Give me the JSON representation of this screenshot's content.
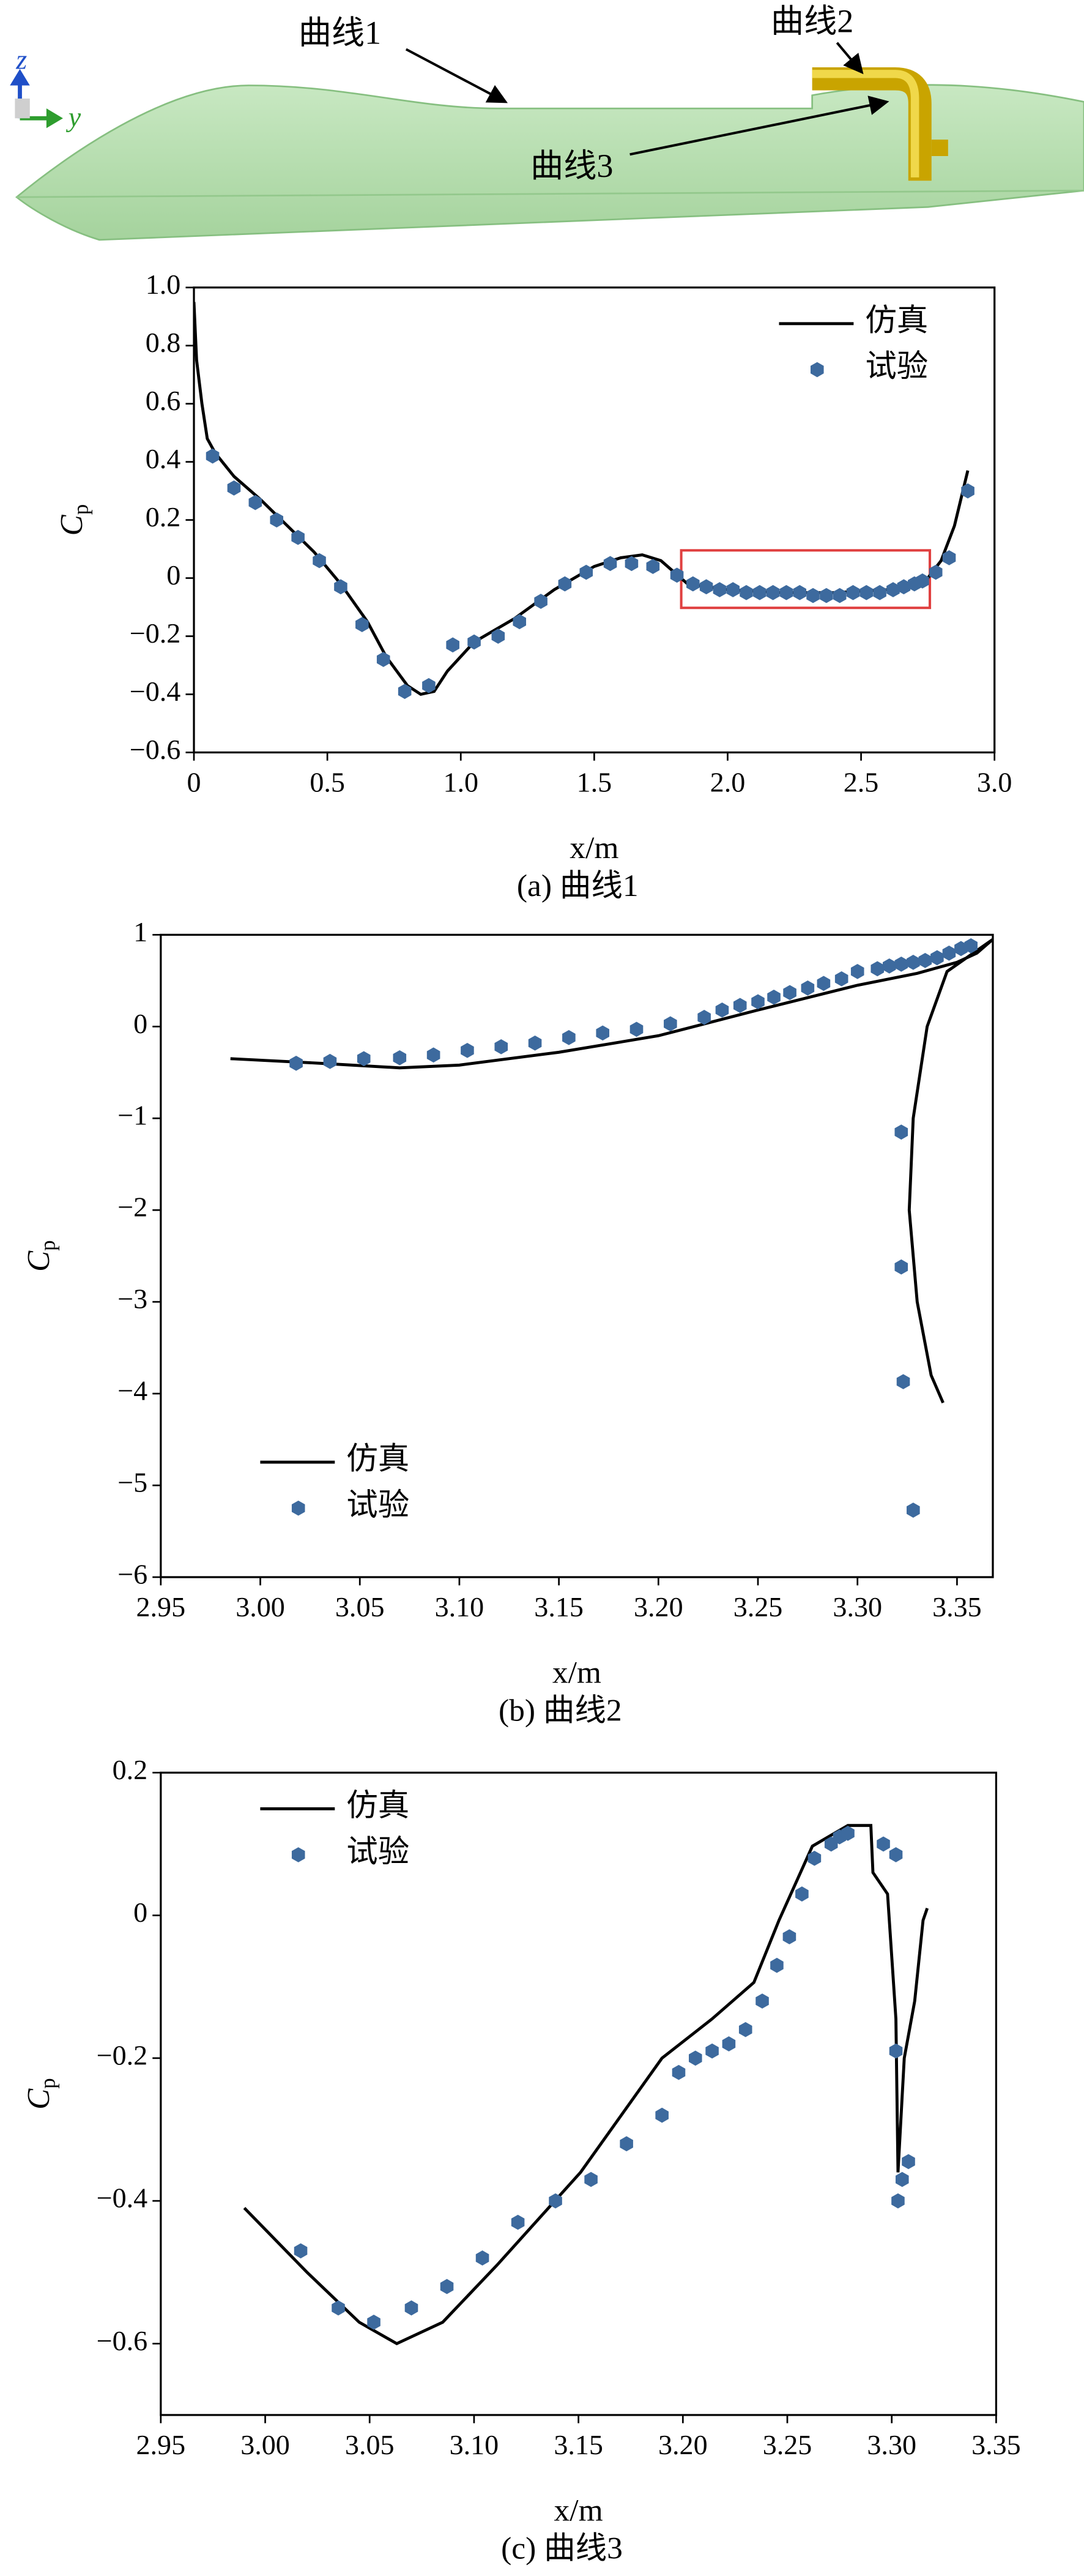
{
  "illustration": {
    "curve1": "曲线1",
    "curve2": "曲线2",
    "curve3": "曲线3",
    "axis_z": "z",
    "axis_y": "y"
  },
  "chart_data": [
    {
      "type": "line",
      "caption": "(a) 曲线1",
      "xlabel": "x/m",
      "ylabel": "C",
      "ylabel_subscript": "p",
      "legend": "upper right",
      "xlim": [
        0,
        3
      ],
      "ylim": [
        -0.6,
        1.0
      ],
      "xticks": [
        0,
        0.5,
        {
          "value": 1,
          "label": "1.0"
        },
        1.5,
        {
          "value": 2,
          "label": "2.0"
        },
        2.5,
        {
          "value": 3,
          "label": "3.0"
        }
      ],
      "yticks": [
        {
          "value": 1,
          "label": "1.0"
        },
        0.8,
        0.6,
        0.4,
        0.2,
        0,
        {
          "value": -0.2,
          "label": "−0.2"
        },
        {
          "value": -0.4,
          "label": "−0.4"
        },
        {
          "value": -0.6,
          "label": "−0.6"
        }
      ],
      "series": [
        {
          "name": "仿真",
          "kind": "line",
          "color": "#000000",
          "x": [
            0,
            0.01,
            0.03,
            0.05,
            0.08,
            0.15,
            0.25,
            0.35,
            0.45,
            0.55,
            0.65,
            0.72,
            0.8,
            0.85,
            0.9,
            0.95,
            1.05,
            1.2,
            1.35,
            1.5,
            1.6,
            1.68,
            1.75,
            1.85,
            2.0,
            2.2,
            2.4,
            2.6,
            2.7,
            2.75,
            2.8,
            2.85,
            2.9
          ],
          "values": [
            0.95,
            0.75,
            0.6,
            0.48,
            0.43,
            0.35,
            0.27,
            0.18,
            0.09,
            -0.02,
            -0.15,
            -0.27,
            -0.37,
            -0.4,
            -0.39,
            -0.32,
            -0.22,
            -0.14,
            -0.04,
            0.04,
            0.07,
            0.08,
            0.06,
            -0.02,
            -0.04,
            -0.05,
            -0.05,
            -0.04,
            -0.02,
            0.0,
            0.06,
            0.18,
            0.37
          ]
        },
        {
          "name": "试验",
          "kind": "scatter",
          "color": "#3d6a9e",
          "x": [
            0.07,
            0.15,
            0.23,
            0.31,
            0.39,
            0.47,
            0.55,
            0.63,
            0.71,
            0.79,
            0.88,
            0.97,
            1.05,
            1.14,
            1.22,
            1.3,
            1.39,
            1.47,
            1.56,
            1.64,
            1.72,
            1.81,
            1.87,
            1.92,
            1.97,
            2.02,
            2.07,
            2.12,
            2.17,
            2.22,
            2.27,
            2.32,
            2.37,
            2.42,
            2.47,
            2.52,
            2.57,
            2.62,
            2.66,
            2.7,
            2.73,
            2.78,
            2.83,
            2.9
          ],
          "values": [
            0.42,
            0.31,
            0.26,
            0.2,
            0.14,
            0.06,
            -0.03,
            -0.16,
            -0.28,
            -0.39,
            -0.37,
            -0.23,
            -0.22,
            -0.2,
            -0.15,
            -0.08,
            -0.02,
            0.02,
            0.05,
            0.05,
            0.04,
            0.01,
            -0.02,
            -0.03,
            -0.04,
            -0.04,
            -0.05,
            -0.05,
            -0.05,
            -0.05,
            -0.05,
            -0.06,
            -0.06,
            -0.06,
            -0.05,
            -0.05,
            -0.05,
            -0.04,
            -0.03,
            -0.02,
            -0.01,
            0.02,
            0.07,
            0.3
          ]
        }
      ]
    },
    {
      "type": "line",
      "caption": "(b) 曲线2",
      "xlabel": "x/m",
      "ylabel": "C",
      "ylabel_subscript": "p",
      "legend": "lower left",
      "xlim": [
        2.95,
        3.368
      ],
      "ylim": [
        -6,
        1
      ],
      "xticks": [
        2.95,
        {
          "value": 3,
          "label": "3.00"
        },
        3.05,
        {
          "value": 3.1,
          "label": "3.10"
        },
        3.15,
        {
          "value": 3.2,
          "label": "3.20"
        },
        3.25,
        {
          "value": 3.3,
          "label": "3.30"
        },
        3.35
      ],
      "yticks": [
        1,
        0,
        {
          "value": -1,
          "label": "−1"
        },
        {
          "value": -2,
          "label": "−2"
        },
        {
          "value": -3,
          "label": "−3"
        },
        {
          "value": -4,
          "label": "−4"
        },
        {
          "value": -5,
          "label": "−5"
        },
        {
          "value": -6,
          "label": "−6"
        }
      ],
      "series": [
        {
          "name": "仿真",
          "kind": "line",
          "color": "#000000",
          "x": [
            2.985,
            3.03,
            3.07,
            3.1,
            3.15,
            3.2,
            3.25,
            3.3,
            3.33,
            3.35,
            3.36,
            3.368,
            3.345,
            3.335,
            3.328,
            3.326,
            3.33,
            3.337,
            3.343
          ],
          "values": [
            -0.35,
            -0.4,
            -0.45,
            -0.42,
            -0.28,
            -0.1,
            0.18,
            0.45,
            0.58,
            0.7,
            0.8,
            0.95,
            0.6,
            0.0,
            -1.0,
            -2.0,
            -3.0,
            -3.8,
            -4.1
          ]
        },
        {
          "name": "试验",
          "kind": "scatter",
          "color": "#3d6a9e",
          "x": [
            3.018,
            3.035,
            3.052,
            3.07,
            3.087,
            3.104,
            3.121,
            3.138,
            3.155,
            3.172,
            3.189,
            3.206,
            3.223,
            3.232,
            3.241,
            3.25,
            3.258,
            3.266,
            3.275,
            3.283,
            3.292,
            3.3,
            3.31,
            3.316,
            3.322,
            3.328,
            3.334,
            3.34,
            3.346,
            3.352,
            3.357,
            3.322,
            3.322,
            3.323,
            3.328
          ],
          "values": [
            -0.4,
            -0.38,
            -0.35,
            -0.34,
            -0.31,
            -0.26,
            -0.22,
            -0.18,
            -0.12,
            -0.07,
            -0.03,
            0.03,
            0.1,
            0.18,
            0.23,
            0.27,
            0.32,
            0.37,
            0.42,
            0.47,
            0.52,
            0.6,
            0.63,
            0.66,
            0.68,
            0.7,
            0.72,
            0.75,
            0.8,
            0.85,
            0.88,
            -1.15,
            -2.62,
            -3.87,
            -5.27
          ]
        }
      ]
    },
    {
      "type": "line",
      "caption": "(c) 曲线3",
      "xlabel": "x/m",
      "ylabel": "C",
      "ylabel_subscript": "p",
      "legend": "upper left",
      "xlim": [
        2.95,
        3.35
      ],
      "ylim": [
        -0.7,
        0.2
      ],
      "xticks": [
        2.95,
        {
          "value": 3,
          "label": "3.00"
        },
        3.05,
        {
          "value": 3.1,
          "label": "3.10"
        },
        3.15,
        {
          "value": 3.2,
          "label": "3.20"
        },
        3.25,
        {
          "value": 3.3,
          "label": "3.30"
        },
        3.35
      ],
      "yticks": [
        0.2,
        0,
        {
          "value": -0.2,
          "label": "−0.2"
        },
        {
          "value": -0.4,
          "label": "−0.4"
        },
        {
          "value": -0.6,
          "label": "−0.6"
        }
      ],
      "series": [
        {
          "name": "仿真",
          "kind": "line",
          "color": "#000000",
          "x": [
            2.99,
            3.02,
            3.045,
            3.063,
            3.085,
            3.111,
            3.151,
            3.19,
            3.214,
            3.234,
            3.246,
            3.262,
            3.279,
            3.29,
            3.291,
            3.298,
            3.302,
            3.303,
            3.306,
            3.311,
            3.315,
            3.317
          ],
          "values": [
            -0.41,
            -0.5,
            -0.57,
            -0.6,
            -0.57,
            -0.49,
            -0.36,
            -0.2,
            -0.145,
            -0.094,
            -0.007,
            0.097,
            0.126,
            0.126,
            0.06,
            0.03,
            -0.145,
            -0.36,
            -0.2,
            -0.12,
            -0.007,
            0.01
          ]
        },
        {
          "name": "试验",
          "kind": "scatter",
          "color": "#3d6a9e",
          "x": [
            3.017,
            3.035,
            3.052,
            3.07,
            3.087,
            3.104,
            3.121,
            3.139,
            3.156,
            3.173,
            3.19,
            3.198,
            3.206,
            3.214,
            3.222,
            3.23,
            3.238,
            3.245,
            3.251,
            3.257,
            3.263,
            3.271,
            3.275,
            3.279,
            3.296,
            3.302,
            3.302,
            3.303,
            3.305,
            3.308
          ],
          "values": [
            -0.47,
            -0.55,
            -0.57,
            -0.55,
            -0.52,
            -0.48,
            -0.43,
            -0.4,
            -0.37,
            -0.32,
            -0.28,
            -0.22,
            -0.2,
            -0.19,
            -0.18,
            -0.16,
            -0.12,
            -0.07,
            -0.03,
            0.03,
            0.08,
            0.1,
            0.11,
            0.115,
            0.1,
            0.085,
            -0.19,
            -0.4,
            -0.37,
            -0.345
          ]
        }
      ]
    }
  ]
}
